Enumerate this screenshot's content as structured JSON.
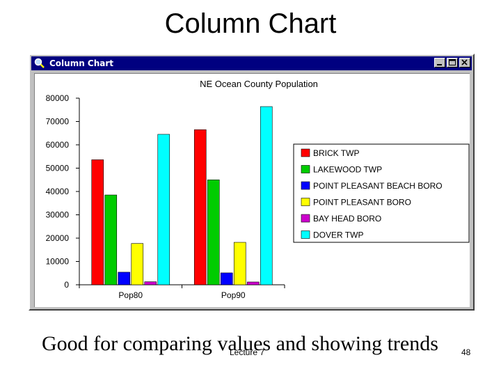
{
  "slide": {
    "title": "Column Chart",
    "caption": "Good for comparing values and showing trends",
    "footer_lecture": "Lecture 7",
    "page_number": "48"
  },
  "window": {
    "title": "Column Chart",
    "icon": "magnifier-icon",
    "titlebar_color": "#000080",
    "buttons": [
      "minimize-icon",
      "maximize-icon",
      "close-icon"
    ]
  },
  "chart_data": {
    "type": "bar",
    "title": "NE Ocean County Population",
    "xlabel": "",
    "ylabel": "",
    "categories": [
      "Pop80",
      "Pop90"
    ],
    "ylim": [
      0,
      80000
    ],
    "yticks": [
      "0",
      "10000",
      "20000",
      "30000",
      "40000",
      "50000",
      "60000",
      "70000",
      "80000"
    ],
    "grid": false,
    "legend_position": "right",
    "series": [
      {
        "name": "BRICK TWP",
        "color": "#ff0000",
        "values": [
          53600,
          66500
        ]
      },
      {
        "name": "LAKEWOOD TWP",
        "color": "#00cc00",
        "values": [
          38500,
          45000
        ]
      },
      {
        "name": "POINT PLEASANT BEACH BORO",
        "color": "#0000ff",
        "values": [
          5400,
          5100
        ]
      },
      {
        "name": "POINT PLEASANT BORO",
        "color": "#ffff00",
        "values": [
          17700,
          18200
        ]
      },
      {
        "name": "BAY HEAD BORO",
        "color": "#cc00cc",
        "values": [
          1300,
          1200
        ]
      },
      {
        "name": "DOVER TWP",
        "color": "#00ffff",
        "values": [
          64500,
          76400
        ]
      }
    ]
  }
}
